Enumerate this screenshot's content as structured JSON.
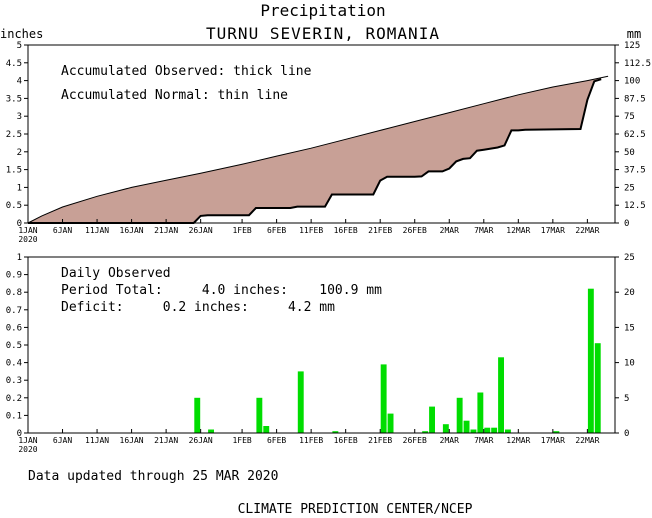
{
  "header": {
    "title": "Precipitation",
    "subtitle": "TURNU SEVERIN, ROMANIA"
  },
  "top_panel": {
    "left_unit": "inches",
    "right_unit": "mm",
    "note_observed": "Accumulated Observed: thick line",
    "note_normal": "Accumulated Normal: thin line"
  },
  "bottom_panel": {
    "heading": "Daily Observed",
    "total_line": "Period Total:     4.0 inches:    100.9 mm",
    "deficit_line": "Deficit:     0.2 inches:     4.2 mm"
  },
  "footer": {
    "updated": "Data updated through 25 MAR 2020",
    "credit": "CLIMATE PREDICTION CENTER/NCEP"
  },
  "colors": {
    "fill": "#c8a096",
    "bar": "#00dd00",
    "line": "#000000"
  },
  "chart_data": [
    {
      "type": "area",
      "x_range_days": [
        0,
        85
      ],
      "x_ticks": [
        {
          "day": 0,
          "label": "1JAN",
          "sub": "2020"
        },
        {
          "day": 5,
          "label": "6JAN"
        },
        {
          "day": 10,
          "label": "11JAN"
        },
        {
          "day": 15,
          "label": "16JAN"
        },
        {
          "day": 20,
          "label": "21JAN"
        },
        {
          "day": 25,
          "label": "26JAN"
        },
        {
          "day": 31,
          "label": "1FEB"
        },
        {
          "day": 36,
          "label": "6FEB"
        },
        {
          "day": 41,
          "label": "11FEB"
        },
        {
          "day": 46,
          "label": "16FEB"
        },
        {
          "day": 51,
          "label": "21FEB"
        },
        {
          "day": 56,
          "label": "26FEB"
        },
        {
          "day": 61,
          "label": "2MAR"
        },
        {
          "day": 66,
          "label": "7MAR"
        },
        {
          "day": 71,
          "label": "12MAR"
        },
        {
          "day": 76,
          "label": "17MAR"
        },
        {
          "day": 81,
          "label": "22MAR"
        }
      ],
      "ylim_left": [
        0,
        5
      ],
      "left_ticks": [
        "0",
        "0.5",
        "1",
        "1.5",
        "2",
        "2.5",
        "3",
        "3.5",
        "4",
        "4.5",
        "5"
      ],
      "ylim_right": [
        0,
        125
      ],
      "right_ticks": [
        "0",
        "12.5",
        "25",
        "37.5",
        "50",
        "62.5",
        "75",
        "87.5",
        "100",
        "112.5",
        "125"
      ],
      "normal": {
        "x": [
          0,
          2,
          5,
          10,
          15,
          20,
          25,
          31,
          36,
          41,
          46,
          51,
          56,
          61,
          66,
          71,
          76,
          81,
          84
        ],
        "y": [
          0,
          0.2,
          0.45,
          0.75,
          1.0,
          1.2,
          1.4,
          1.65,
          1.88,
          2.1,
          2.35,
          2.6,
          2.85,
          3.1,
          3.35,
          3.6,
          3.82,
          4.0,
          4.12
        ]
      },
      "observed": {
        "x": [
          0,
          24,
          25,
          26,
          32,
          33,
          38,
          39,
          43,
          44,
          50,
          51,
          52,
          56,
          57,
          58,
          60,
          61,
          62,
          63,
          64,
          65,
          66,
          67,
          68,
          69,
          70,
          71,
          72,
          80,
          81,
          82,
          83
        ],
        "y": [
          0,
          0,
          0.2,
          0.22,
          0.22,
          0.42,
          0.42,
          0.46,
          0.46,
          0.8,
          0.8,
          1.19,
          1.3,
          1.3,
          1.31,
          1.45,
          1.45,
          1.53,
          1.73,
          1.8,
          1.82,
          2.03,
          2.06,
          2.09,
          2.12,
          2.18,
          2.6,
          2.6,
          2.62,
          2.64,
          3.46,
          3.98,
          4.04
        ]
      }
    },
    {
      "type": "bar",
      "x_range_days": [
        0,
        85
      ],
      "ylim_left": [
        0,
        1
      ],
      "left_ticks": [
        "0",
        "0.1",
        "0.2",
        "0.3",
        "0.4",
        "0.5",
        "0.6",
        "0.7",
        "0.8",
        "0.9",
        "1"
      ],
      "ylim_right": [
        0,
        25
      ],
      "right_ticks": [
        "0",
        "5",
        "10",
        "15",
        "20",
        "25"
      ],
      "days": [
        24,
        26,
        33,
        34,
        39,
        44,
        51,
        52,
        57,
        58,
        60,
        62,
        63,
        64,
        65,
        66,
        67,
        68,
        69,
        76,
        81,
        82
      ],
      "values": [
        0.2,
        0.02,
        0.2,
        0.04,
        0.35,
        0.01,
        0.39,
        0.11,
        0.01,
        0.15,
        0.05,
        0.2,
        0.07,
        0.02,
        0.23,
        0.03,
        0.03,
        0.43,
        0.02,
        0.01,
        0.82,
        0.51
      ]
    }
  ]
}
